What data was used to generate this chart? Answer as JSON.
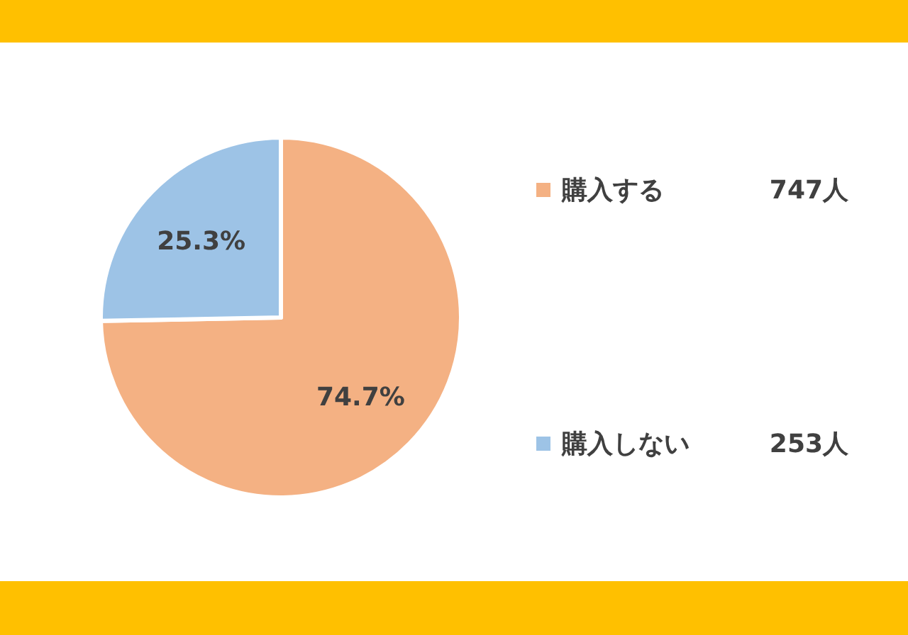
{
  "chart_data": {
    "type": "pie",
    "categories": [
      "購入する",
      "購入しない"
    ],
    "values": [
      74.7,
      25.3
    ],
    "colors": [
      "#f4b183",
      "#9dc3e6"
    ],
    "value_labels": [
      "74.7%",
      "25.3%"
    ],
    "legend": "right",
    "annotations": [
      "747人",
      "253人"
    ]
  }
}
